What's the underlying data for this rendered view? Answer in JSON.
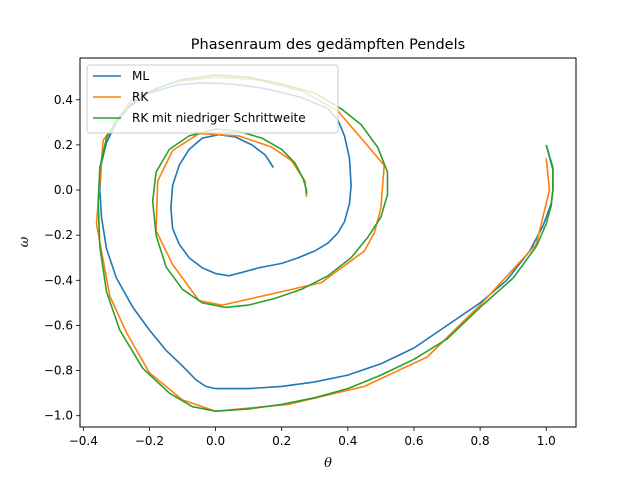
{
  "chart_data": {
    "type": "line",
    "title": "Phasenraum des gedämpften Pendels",
    "xlabel": "θ",
    "ylabel": "ω",
    "xlim": [
      -0.41,
      1.09
    ],
    "ylim": [
      -1.05,
      0.585
    ],
    "xticks": [
      -0.4,
      -0.2,
      0.0,
      0.2,
      0.4,
      0.6,
      0.8,
      1.0
    ],
    "xtick_labels": [
      "−0.4",
      "−0.2",
      "0.0",
      "0.2",
      "0.4",
      "0.6",
      "0.8",
      "1.0"
    ],
    "yticks": [
      -1.0,
      -0.8,
      -0.6,
      -0.4,
      -0.2,
      0.0,
      0.2,
      0.4
    ],
    "ytick_labels": [
      "−1.0",
      "−0.8",
      "−0.6",
      "−0.4",
      "−0.2",
      "0.0",
      "0.2",
      "0.4"
    ],
    "grid": false,
    "legend_position": "top-left",
    "series": [
      {
        "name": "ML",
        "color": "#1f77b4",
        "points": [
          [
            1.0,
            0.2
          ],
          [
            1.02,
            0.09
          ],
          [
            1.02,
            0.0
          ],
          [
            1.015,
            -0.06
          ],
          [
            0.99,
            -0.16
          ],
          [
            0.95,
            -0.27
          ],
          [
            0.88,
            -0.4
          ],
          [
            0.8,
            -0.5
          ],
          [
            0.68,
            -0.62
          ],
          [
            0.6,
            -0.7
          ],
          [
            0.5,
            -0.77
          ],
          [
            0.4,
            -0.82
          ],
          [
            0.3,
            -0.85
          ],
          [
            0.2,
            -0.87
          ],
          [
            0.1,
            -0.88
          ],
          [
            0.0,
            -0.88
          ],
          [
            -0.03,
            -0.87
          ],
          [
            -0.06,
            -0.84
          ],
          [
            -0.1,
            -0.78
          ],
          [
            -0.15,
            -0.71
          ],
          [
            -0.2,
            -0.62
          ],
          [
            -0.25,
            -0.52
          ],
          [
            -0.3,
            -0.39
          ],
          [
            -0.33,
            -0.26
          ],
          [
            -0.345,
            -0.12
          ],
          [
            -0.35,
            0.0
          ],
          [
            -0.345,
            0.12
          ],
          [
            -0.33,
            0.21
          ],
          [
            -0.3,
            0.3
          ],
          [
            -0.26,
            0.37
          ],
          [
            -0.2,
            0.43
          ],
          [
            -0.12,
            0.465
          ],
          [
            -0.04,
            0.475
          ],
          [
            0.05,
            0.47
          ],
          [
            0.15,
            0.45
          ],
          [
            0.26,
            0.41
          ],
          [
            0.34,
            0.36
          ],
          [
            0.37,
            0.31
          ],
          [
            0.39,
            0.24
          ],
          [
            0.405,
            0.14
          ],
          [
            0.41,
            0.02
          ],
          [
            0.405,
            -0.06
          ],
          [
            0.39,
            -0.14
          ],
          [
            0.37,
            -0.19
          ],
          [
            0.34,
            -0.235
          ],
          [
            0.3,
            -0.27
          ],
          [
            0.25,
            -0.3
          ],
          [
            0.2,
            -0.325
          ],
          [
            0.13,
            -0.345
          ],
          [
            0.08,
            -0.365
          ],
          [
            0.04,
            -0.38
          ],
          [
            0.0,
            -0.37
          ],
          [
            -0.04,
            -0.345
          ],
          [
            -0.08,
            -0.3
          ],
          [
            -0.11,
            -0.24
          ],
          [
            -0.13,
            -0.17
          ],
          [
            -0.135,
            -0.08
          ],
          [
            -0.13,
            0.02
          ],
          [
            -0.11,
            0.11
          ],
          [
            -0.08,
            0.18
          ],
          [
            -0.04,
            0.23
          ],
          [
            0.01,
            0.245
          ],
          [
            0.06,
            0.235
          ],
          [
            0.11,
            0.2
          ],
          [
            0.15,
            0.155
          ],
          [
            0.175,
            0.1
          ]
        ]
      },
      {
        "name": "RK",
        "color": "#ff7f0e",
        "points": [
          [
            1.0,
            0.14
          ],
          [
            1.01,
            0.0
          ],
          [
            0.99,
            -0.12
          ],
          [
            0.97,
            -0.24
          ],
          [
            0.8,
            -0.51
          ],
          [
            0.64,
            -0.74
          ],
          [
            0.45,
            -0.87
          ],
          [
            0.22,
            -0.95
          ],
          [
            0.0,
            -0.98
          ],
          [
            -0.1,
            -0.93
          ],
          [
            -0.2,
            -0.81
          ],
          [
            -0.27,
            -0.63
          ],
          [
            -0.32,
            -0.47
          ],
          [
            -0.36,
            -0.15
          ],
          [
            -0.34,
            0.22
          ],
          [
            -0.25,
            0.41
          ],
          [
            -0.12,
            0.48
          ],
          [
            0.0,
            0.5
          ],
          [
            0.12,
            0.49
          ],
          [
            0.26,
            0.44
          ],
          [
            0.37,
            0.35
          ],
          [
            0.51,
            0.11
          ],
          [
            0.5,
            -0.08
          ],
          [
            0.48,
            -0.19
          ],
          [
            0.45,
            -0.27
          ],
          [
            0.32,
            -0.41
          ],
          [
            0.02,
            -0.51
          ],
          [
            -0.05,
            -0.49
          ],
          [
            -0.13,
            -0.33
          ],
          [
            -0.18,
            -0.18
          ],
          [
            -0.175,
            0.04
          ],
          [
            -0.13,
            0.175
          ],
          [
            -0.05,
            0.25
          ],
          [
            0.07,
            0.24
          ],
          [
            0.17,
            0.19
          ],
          [
            0.23,
            0.13
          ],
          [
            0.27,
            0.04
          ],
          [
            0.275,
            -0.03
          ]
        ]
      },
      {
        "name": "RK mit niedriger Schrittweite",
        "color": "#2ca02c",
        "points": [
          [
            1.0,
            0.2
          ],
          [
            1.02,
            0.1
          ],
          [
            1.02,
            0.0
          ],
          [
            1.015,
            -0.07
          ],
          [
            1.0,
            -0.15
          ],
          [
            0.97,
            -0.25
          ],
          [
            0.9,
            -0.39
          ],
          [
            0.8,
            -0.52
          ],
          [
            0.7,
            -0.66
          ],
          [
            0.6,
            -0.75
          ],
          [
            0.5,
            -0.82
          ],
          [
            0.4,
            -0.88
          ],
          [
            0.3,
            -0.92
          ],
          [
            0.2,
            -0.95
          ],
          [
            0.1,
            -0.97
          ],
          [
            0.0,
            -0.98
          ],
          [
            -0.07,
            -0.96
          ],
          [
            -0.14,
            -0.9
          ],
          [
            -0.22,
            -0.79
          ],
          [
            -0.29,
            -0.62
          ],
          [
            -0.33,
            -0.45
          ],
          [
            -0.35,
            -0.25
          ],
          [
            -0.355,
            -0.05
          ],
          [
            -0.35,
            0.1
          ],
          [
            -0.33,
            0.23
          ],
          [
            -0.3,
            0.31
          ],
          [
            -0.25,
            0.39
          ],
          [
            -0.18,
            0.45
          ],
          [
            -0.1,
            0.49
          ],
          [
            0.0,
            0.51
          ],
          [
            0.1,
            0.5
          ],
          [
            0.2,
            0.47
          ],
          [
            0.3,
            0.43
          ],
          [
            0.38,
            0.36
          ],
          [
            0.44,
            0.29
          ],
          [
            0.49,
            0.19
          ],
          [
            0.52,
            0.08
          ],
          [
            0.52,
            -0.02
          ],
          [
            0.5,
            -0.12
          ],
          [
            0.46,
            -0.21
          ],
          [
            0.41,
            -0.3
          ],
          [
            0.34,
            -0.38
          ],
          [
            0.26,
            -0.44
          ],
          [
            0.18,
            -0.48
          ],
          [
            0.1,
            -0.51
          ],
          [
            0.03,
            -0.52
          ],
          [
            -0.04,
            -0.5
          ],
          [
            -0.1,
            -0.44
          ],
          [
            -0.15,
            -0.34
          ],
          [
            -0.18,
            -0.2
          ],
          [
            -0.19,
            -0.05
          ],
          [
            -0.18,
            0.08
          ],
          [
            -0.14,
            0.18
          ],
          [
            -0.08,
            0.24
          ],
          [
            0.0,
            0.27
          ],
          [
            0.07,
            0.26
          ],
          [
            0.14,
            0.23
          ],
          [
            0.2,
            0.18
          ],
          [
            0.24,
            0.12
          ],
          [
            0.265,
            0.05
          ],
          [
            0.275,
            0.0
          ],
          [
            0.275,
            -0.02
          ]
        ]
      }
    ]
  }
}
